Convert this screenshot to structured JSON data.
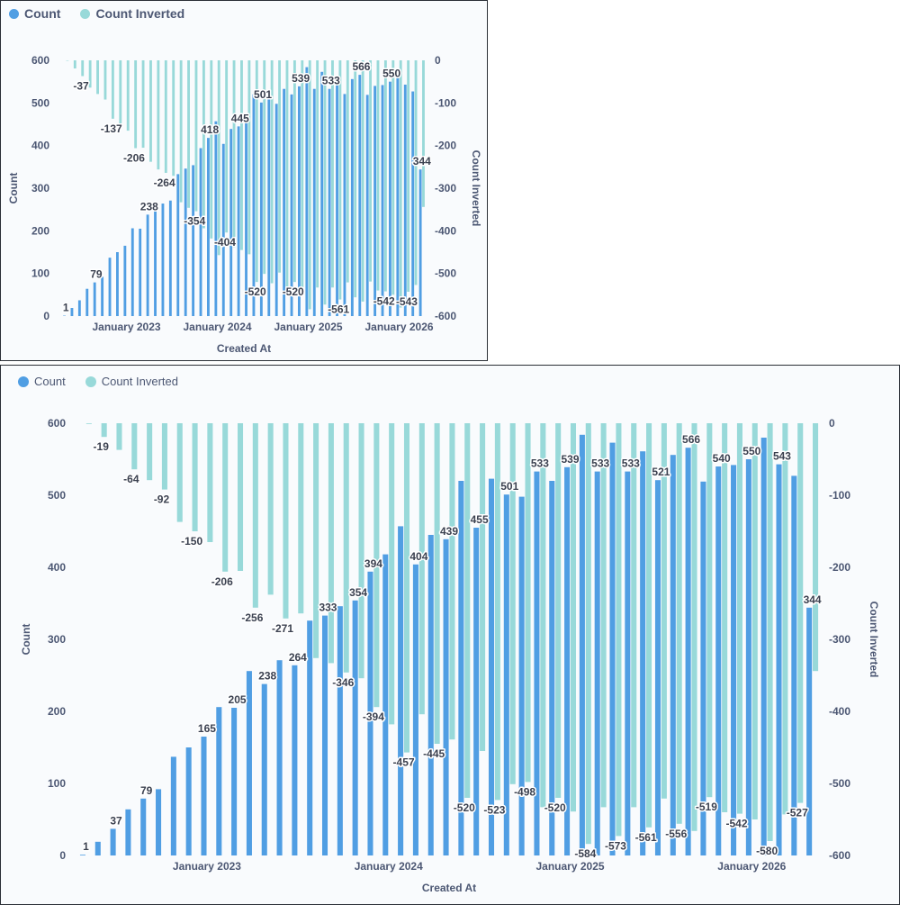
{
  "colors": {
    "count": "#509ee3",
    "count_inverted": "#98d9d9",
    "axis_text": "#4c5773"
  },
  "legend": {
    "count": "Count",
    "count_inverted": "Count Inverted"
  },
  "chart_data": [
    {
      "type": "bar",
      "x_label": "Created At",
      "y_label_left": "Count",
      "y_label_right": "Count Inverted",
      "ylim_left": [
        0,
        600
      ],
      "ylim_right": [
        -600,
        0
      ],
      "y_ticks_left": [
        0,
        100,
        200,
        300,
        400,
        500,
        600
      ],
      "y_ticks_right": [
        -600,
        -500,
        -400,
        -300,
        -200,
        -100,
        0
      ],
      "x_tick_labels": [
        "January 2023",
        "January 2024",
        "January 2025",
        "January 2026"
      ],
      "x_tick_indices": [
        8,
        20,
        32,
        44
      ],
      "legend_position": "top-left",
      "series": [
        {
          "name": "Count",
          "axis": "left",
          "values": [
            1,
            19,
            37,
            64,
            79,
            92,
            137,
            150,
            165,
            206,
            205,
            238,
            256,
            264,
            271,
            333,
            346,
            354,
            394,
            418,
            457,
            404,
            439,
            445,
            455,
            520,
            501,
            523,
            498,
            533,
            520,
            539,
            584,
            533,
            573,
            533,
            561,
            521,
            556,
            566,
            519,
            540,
            542,
            550,
            580,
            543,
            527,
            344
          ],
          "labeled_indices": [
            0,
            4,
            11,
            19,
            23,
            26,
            31,
            35,
            39,
            43,
            47
          ]
        },
        {
          "name": "Count Inverted",
          "axis": "right",
          "values": [
            -1,
            -19,
            -37,
            -64,
            -79,
            -92,
            -137,
            -150,
            -165,
            -206,
            -205,
            -238,
            -256,
            -264,
            -271,
            -333,
            -346,
            -354,
            -394,
            -418,
            -457,
            -404,
            -439,
            -445,
            -455,
            -520,
            -501,
            -523,
            -498,
            -533,
            -520,
            -539,
            -584,
            -533,
            -573,
            -533,
            -561,
            -521,
            -556,
            -566,
            -519,
            -540,
            -542,
            -550,
            -580,
            -543,
            -527,
            -344
          ],
          "labeled_indices": [
            2,
            6,
            9,
            13,
            17,
            21,
            25,
            30,
            36,
            42,
            45
          ]
        }
      ]
    },
    {
      "type": "bar",
      "x_label": "Created At",
      "y_label_left": "Count",
      "y_label_right": "Count Inverted",
      "ylim_left": [
        0,
        600
      ],
      "ylim_right": [
        -600,
        0
      ],
      "y_ticks_left": [
        0,
        100,
        200,
        300,
        400,
        500,
        600
      ],
      "y_ticks_right": [
        -600,
        -500,
        -400,
        -300,
        -200,
        -100,
        0
      ],
      "x_tick_labels": [
        "January 2023",
        "January 2024",
        "January 2025",
        "January 2026"
      ],
      "x_tick_indices": [
        8,
        20,
        32,
        44
      ],
      "legend_position": "top-left",
      "series": [
        {
          "name": "Count",
          "axis": "left",
          "values": [
            1,
            19,
            37,
            64,
            79,
            92,
            137,
            150,
            165,
            206,
            205,
            256,
            238,
            271,
            264,
            326,
            333,
            346,
            354,
            394,
            418,
            457,
            404,
            445,
            439,
            520,
            455,
            523,
            501,
            498,
            533,
            520,
            539,
            584,
            533,
            573,
            533,
            561,
            521,
            556,
            566,
            519,
            540,
            542,
            550,
            580,
            543,
            527,
            344
          ],
          "labeled_indices": [
            0,
            2,
            4,
            8,
            10,
            12,
            14,
            16,
            18,
            19,
            22,
            24,
            26,
            28,
            30,
            32,
            34,
            36,
            38,
            40,
            42,
            44,
            46,
            48
          ]
        },
        {
          "name": "Count Inverted",
          "axis": "right",
          "values": [
            -1,
            -19,
            -37,
            -64,
            -79,
            -92,
            -137,
            -150,
            -165,
            -206,
            -205,
            -256,
            -238,
            -271,
            -264,
            -326,
            -333,
            -346,
            -354,
            -394,
            -418,
            -457,
            -404,
            -445,
            -439,
            -520,
            -455,
            -523,
            -501,
            -498,
            -533,
            -520,
            -539,
            -584,
            -533,
            -573,
            -533,
            -561,
            -521,
            -556,
            -566,
            -519,
            -540,
            -542,
            -550,
            -580,
            -543,
            -527,
            -344
          ],
          "labeled_indices": [
            1,
            3,
            5,
            7,
            9,
            11,
            13,
            17,
            19,
            21,
            23,
            25,
            27,
            29,
            31,
            33,
            35,
            37,
            39,
            41,
            43,
            45,
            47
          ]
        }
      ]
    }
  ]
}
